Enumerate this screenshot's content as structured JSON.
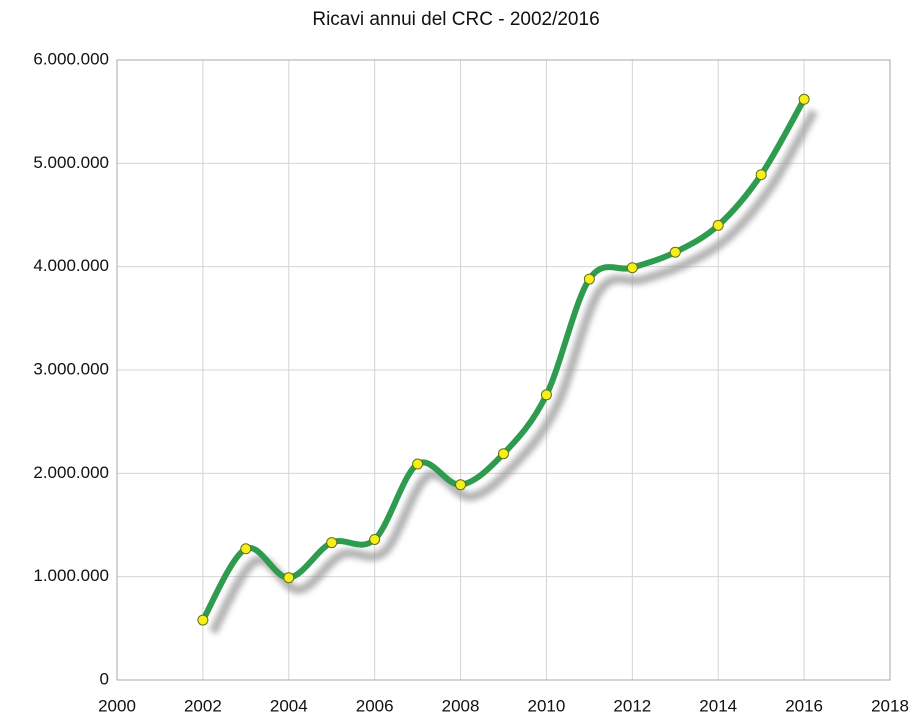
{
  "chart_data": {
    "type": "line",
    "title": "Ricavi annui del CRC - 2002/2016",
    "x": [
      2002,
      2003,
      2004,
      2005,
      2006,
      2007,
      2008,
      2009,
      2010,
      2011,
      2012,
      2013,
      2014,
      2015,
      2016
    ],
    "series": [
      {
        "name": "Ricavi",
        "color": "#2e9b4e",
        "marker_color": "#f4f11a",
        "values": [
          580000,
          1270000,
          990000,
          1330000,
          1360000,
          2090000,
          1890000,
          2190000,
          2760000,
          3880000,
          3990000,
          4140000,
          4400000,
          4890000,
          5620000
        ]
      }
    ],
    "xlim": [
      2000,
      2018
    ],
    "xticks": [
      2000,
      2002,
      2004,
      2006,
      2008,
      2010,
      2012,
      2014,
      2016,
      2018
    ],
    "ylim": [
      0,
      6000000
    ],
    "yticks": [
      0,
      {
        "value": 1000000,
        "label": "1.000.000"
      },
      {
        "value": 2000000,
        "label": "2.000.000"
      },
      {
        "value": 3000000,
        "label": "3.000.000"
      },
      {
        "value": 4000000,
        "label": "4.000.000"
      },
      {
        "value": 5000000,
        "label": "5.000.000"
      },
      {
        "value": 6000000,
        "label": "6.000.000"
      }
    ],
    "grid": true
  }
}
